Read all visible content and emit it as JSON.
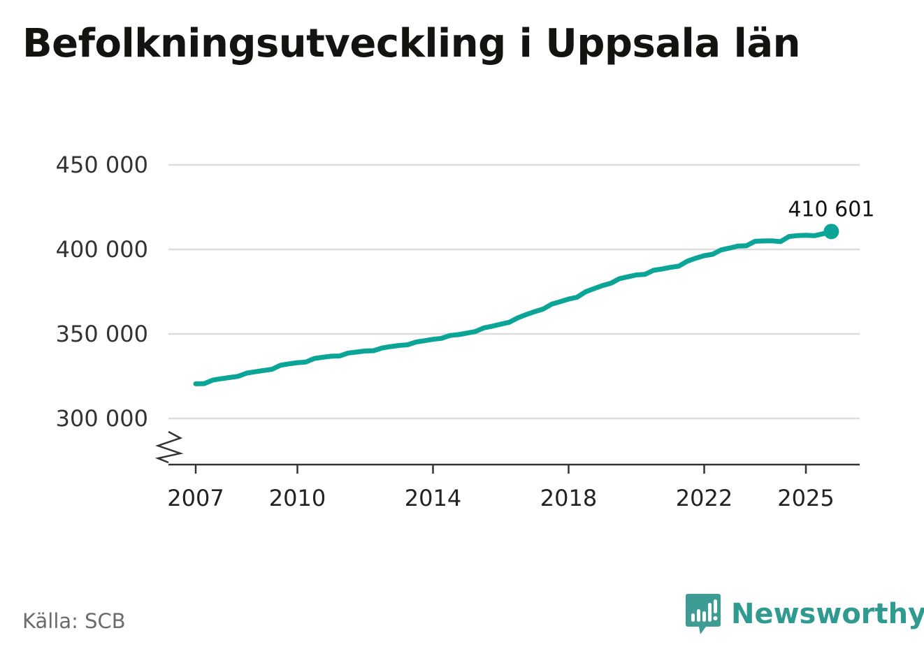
{
  "title": "Befolkningsutveckling i Uppsala län",
  "source": "Källa: SCB",
  "brand": {
    "name": "Newsworthy",
    "icon": "newsworthy-logo-icon",
    "color": "#2f9a8f"
  },
  "colors": {
    "line": "#0aa596",
    "grid": "#dcdcdc",
    "axis": "#333333"
  },
  "chart_data": {
    "type": "line",
    "title": "Befolkningsutveckling i Uppsala län",
    "xlabel": "",
    "ylabel": "",
    "xlim": [
      2006.75,
      2026.7
    ],
    "ylim": [
      280000,
      450000
    ],
    "y_axis_break": true,
    "grid": "horizontal",
    "legend": "none",
    "yticks": [
      300000,
      350000,
      400000,
      450000
    ],
    "ytick_labels": [
      "300 000",
      "350 000",
      "400 000",
      "450 000"
    ],
    "xticks": [
      2007,
      2010,
      2014,
      2018,
      2022,
      2025
    ],
    "xtick_labels": [
      "2007",
      "2010",
      "2014",
      "2018",
      "2022",
      "2025"
    ],
    "end_label": "410 601",
    "series": [
      {
        "x": [
          2007.0,
          2007.25,
          2007.5,
          2007.75,
          2008.0,
          2008.25,
          2008.5,
          2008.75,
          2009.0,
          2009.25,
          2009.5,
          2009.75,
          2010.0,
          2010.25,
          2010.5,
          2010.75,
          2011.0,
          2011.25,
          2011.5,
          2011.75,
          2012.0,
          2012.25,
          2012.5,
          2012.75,
          2013.0,
          2013.25,
          2013.5,
          2013.75,
          2014.0,
          2014.25,
          2014.5,
          2014.75,
          2015.0,
          2015.25,
          2015.5,
          2015.75,
          2016.0,
          2016.25,
          2016.5,
          2016.75,
          2017.0,
          2017.25,
          2017.5,
          2017.75,
          2018.0,
          2018.25,
          2018.5,
          2018.75,
          2019.0,
          2019.25,
          2019.5,
          2019.75,
          2020.0,
          2020.25,
          2020.5,
          2020.75,
          2021.0,
          2021.25,
          2021.5,
          2021.75,
          2022.0,
          2022.25,
          2022.5,
          2022.75,
          2023.0,
          2023.25,
          2023.5,
          2023.75,
          2024.0,
          2024.25,
          2024.5,
          2024.75,
          2025.0,
          2025.25,
          2025.5,
          2025.75
        ],
        "values": [
          320500,
          320600,
          322700,
          323500,
          324200,
          324900,
          326800,
          327600,
          328400,
          329100,
          331500,
          332300,
          333000,
          333400,
          335500,
          336200,
          336800,
          337000,
          338700,
          339300,
          339900,
          340100,
          341700,
          342500,
          343200,
          343600,
          345200,
          346000,
          346800,
          347400,
          349100,
          349600,
          350500,
          351400,
          353600,
          354600,
          355800,
          356900,
          359500,
          361500,
          363200,
          364700,
          367600,
          369100,
          370600,
          371700,
          374900,
          376800,
          378600,
          380000,
          382700,
          383800,
          384900,
          385200,
          387600,
          388400,
          389400,
          390100,
          393000,
          394800,
          396300,
          397100,
          399700,
          400800,
          402000,
          402200,
          404800,
          405000,
          405100,
          404600,
          407600,
          408200,
          408400,
          408100,
          409200,
          410601
        ]
      }
    ]
  }
}
